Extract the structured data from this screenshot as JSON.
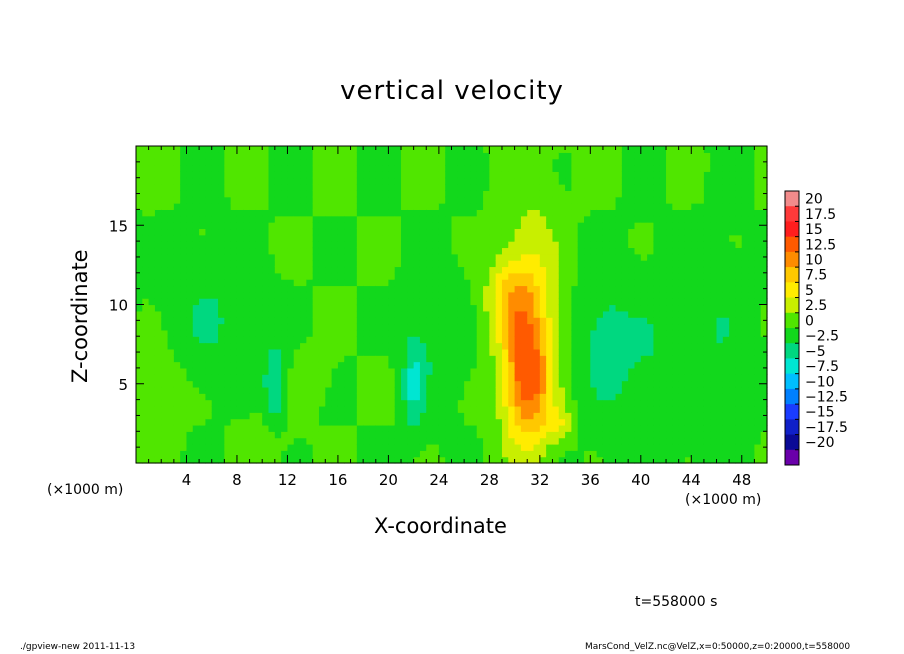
{
  "chart_data": {
    "type": "heatmap",
    "title": "vertical velocity",
    "xlabel": "X-coordinate",
    "ylabel": "Z-coordinate",
    "x_unit_label": "(×1000 m)",
    "x_range": [
      0,
      50
    ],
    "y_range": [
      0,
      20
    ],
    "x_ticks": [
      4,
      8,
      12,
      16,
      20,
      24,
      28,
      32,
      36,
      40,
      44,
      48
    ],
    "y_ticks": [
      5,
      10,
      15
    ],
    "colorbar": {
      "levels": [
        "20",
        "17.5",
        "15",
        "12.5",
        "10",
        "7.5",
        "5",
        "2.5",
        "0",
        "−2.5",
        "−5",
        "−7.5",
        "−10",
        "−12.5",
        "−15",
        "−17.5",
        "−20"
      ],
      "colors": [
        "#f28b8b",
        "#ff3a3a",
        "#ff1e1e",
        "#ff5a00",
        "#ff8c00",
        "#ffc800",
        "#ffec00",
        "#c8ef00",
        "#50e600",
        "#12d81c",
        "#00d880",
        "#00e6d2",
        "#00bfff",
        "#0080ff",
        "#1a3cff",
        "#1020c8",
        "#0a0a96",
        "#6a00aa"
      ]
    },
    "background_value": 0,
    "features": [
      {
        "x": 31,
        "z": 5.5,
        "sx": 1.4,
        "sz": 3.2,
        "value": 14
      },
      {
        "x": 29.5,
        "z": 10.5,
        "sx": 1.3,
        "sz": 1.8,
        "value": 6
      },
      {
        "x": 31.5,
        "z": 12,
        "sx": 1.5,
        "sz": 4,
        "value": 4
      },
      {
        "x": 33.5,
        "z": 2.5,
        "sx": 0.8,
        "sz": 0.8,
        "value": 4
      },
      {
        "x": 1.5,
        "z": 4.5,
        "sx": 1.6,
        "sz": 1.8,
        "value": 3
      },
      {
        "x": 10,
        "z": 1.5,
        "sx": 1.5,
        "sz": 1.2,
        "value": 1.5
      },
      {
        "x": 14,
        "z": 5.5,
        "sx": 1,
        "sz": 1.2,
        "value": 1.5
      },
      {
        "x": 11,
        "z": 5,
        "sx": 0.6,
        "sz": 1.8,
        "value": -5
      },
      {
        "x": 22,
        "z": 5,
        "sx": 0.6,
        "sz": 2.2,
        "value": -5
      },
      {
        "x": 24,
        "z": 8,
        "sx": 1.5,
        "sz": 3,
        "value": -2.5
      },
      {
        "x": 6,
        "z": 9,
        "sx": 2.5,
        "sz": 3,
        "value": -2.5
      },
      {
        "x": 40,
        "z": 6,
        "sx": 3,
        "sz": 4,
        "value": -2.5
      },
      {
        "x": 37,
        "z": 8,
        "sx": 1.2,
        "sz": 2.5,
        "value": -2.5
      },
      {
        "x": 46,
        "z": 8,
        "sx": 2,
        "sz": 4,
        "value": -2
      }
    ]
  },
  "annotations": {
    "time": "t=558000 s",
    "footer_left": "./gpview-new  2011-11-13",
    "footer_right": "MarsCond_VelZ.nc@VelZ,x=0:50000,z=0:20000,t=558000"
  }
}
